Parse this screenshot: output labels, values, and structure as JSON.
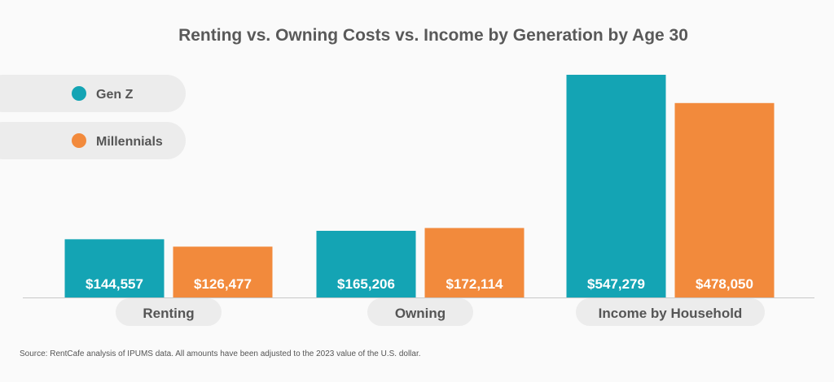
{
  "chart_data": {
    "type": "bar",
    "title": "Renting vs. Owning Costs vs. Income by Generation by Age 30",
    "categories": [
      "Renting",
      "Owning",
      "Income by Household"
    ],
    "series": [
      {
        "name": "Gen Z",
        "color": "#14a4b4",
        "values": [
          144557,
          165206,
          547279
        ],
        "labels": [
          "$144,557",
          "$165,206",
          "$547,279"
        ]
      },
      {
        "name": "Millennials",
        "color": "#f28a3c",
        "values": [
          126477,
          172114,
          478050
        ],
        "labels": [
          "$126,477",
          "$172,114",
          "$478,050"
        ]
      }
    ],
    "ylim": [
      0,
      547279
    ],
    "grid": false,
    "legend": "top-left",
    "source": "Source: RentCafe analysis of IPUMS data. All amounts have been adjusted to the 2023 value of the U.S. dollar."
  }
}
